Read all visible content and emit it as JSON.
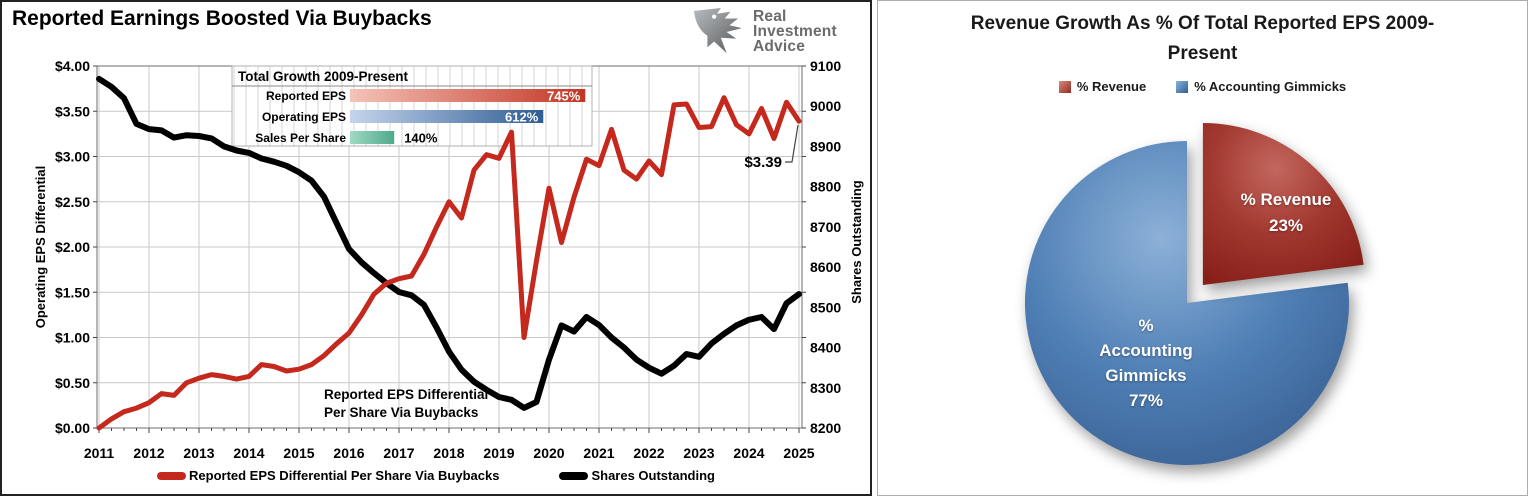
{
  "left_panel": {
    "title": "Reported Earnings Boosted Via Buybacks",
    "logo_lines": [
      "Real",
      "Investment",
      "Advice"
    ],
    "annotation": [
      "Reported EPS Differential",
      "Per Share Via Buybacks"
    ],
    "callout": "$3.39",
    "legend": [
      {
        "label": "Reported EPS Differential Per Share Via Buybacks",
        "color": "#c5281c"
      },
      {
        "label": "Shares Outstanding",
        "color": "#000000"
      }
    ]
  },
  "right_panel": {
    "title_line1": "Revenue Growth As % Of Total Reported EPS 2009-",
    "title_line2": "Present",
    "legend": [
      {
        "label": "% Revenue",
        "color": "#a23930"
      },
      {
        "label": "% Accounting Gimmicks",
        "color": "#4f81bd"
      }
    ],
    "pie_labels": {
      "revenue": [
        "% Revenue",
        "23%"
      ],
      "gimmicks": [
        "%",
        "Accounting",
        "Gimmicks",
        "77%"
      ]
    }
  },
  "chart_data": [
    {
      "type": "line",
      "title": "Reported Earnings Boosted Via Buybacks",
      "x_ticks": [
        2011,
        2012,
        2013,
        2014,
        2015,
        2016,
        2017,
        2018,
        2019,
        2020,
        2021,
        2022,
        2023,
        2024,
        2025
      ],
      "x": [
        2011,
        2011.25,
        2011.5,
        2011.75,
        2012,
        2012.25,
        2012.5,
        2012.75,
        2013,
        2013.25,
        2013.5,
        2013.75,
        2014,
        2014.25,
        2014.5,
        2014.75,
        2015,
        2015.25,
        2015.5,
        2015.75,
        2016,
        2016.25,
        2016.5,
        2016.75,
        2017,
        2017.25,
        2017.5,
        2017.75,
        2018,
        2018.25,
        2018.5,
        2018.75,
        2019,
        2019.25,
        2019.5,
        2019.75,
        2020,
        2020.25,
        2020.5,
        2020.75,
        2021,
        2021.25,
        2021.5,
        2021.75,
        2022,
        2022.25,
        2022.5,
        2022.75,
        2023,
        2023.25,
        2023.5,
        2023.75,
        2024,
        2024.25,
        2024.5,
        2024.75,
        2025
      ],
      "series": [
        {
          "name": "Reported EPS Differential Per Share Via Buybacks",
          "axis": "left",
          "color": "#c5281c",
          "values": [
            0.0,
            0.1,
            0.18,
            0.22,
            0.28,
            0.38,
            0.36,
            0.5,
            0.55,
            0.59,
            0.57,
            0.54,
            0.57,
            0.7,
            0.68,
            0.63,
            0.65,
            0.7,
            0.8,
            0.93,
            1.05,
            1.25,
            1.48,
            1.6,
            1.65,
            1.68,
            1.92,
            2.22,
            2.5,
            2.32,
            2.85,
            3.02,
            2.98,
            3.27,
            1.0,
            1.85,
            2.65,
            2.05,
            2.55,
            2.97,
            2.9,
            3.3,
            2.85,
            2.75,
            2.95,
            2.8,
            3.57,
            3.58,
            3.32,
            3.33,
            3.65,
            3.35,
            3.25,
            3.53,
            3.2,
            3.6,
            3.39
          ]
        },
        {
          "name": "Shares Outstanding",
          "axis": "right",
          "color": "#000000",
          "values": [
            9068,
            9048,
            9020,
            8956,
            8943,
            8940,
            8922,
            8928,
            8926,
            8920,
            8900,
            8890,
            8884,
            8870,
            8862,
            8852,
            8836,
            8815,
            8775,
            8710,
            8645,
            8612,
            8585,
            8560,
            8538,
            8530,
            8506,
            8450,
            8390,
            8345,
            8315,
            8295,
            8277,
            8270,
            8250,
            8265,
            8370,
            8455,
            8440,
            8476,
            8456,
            8425,
            8400,
            8370,
            8350,
            8335,
            8355,
            8384,
            8377,
            8410,
            8434,
            8455,
            8469,
            8476,
            8446,
            8510,
            8533
          ]
        }
      ],
      "left_axis": {
        "label": "Operating EPS Differential",
        "min": 0,
        "max": 4,
        "step": 0.5,
        "prefix": "$",
        "decimals": 2
      },
      "right_axis": {
        "label": "Shares Outstanding",
        "min": 8200,
        "max": 9100,
        "step": 100
      },
      "grid": true,
      "last_value_label": "$3.39"
    },
    {
      "type": "bar",
      "title": "Total Growth 2009-Present",
      "categories": [
        "Reported EPS",
        "Operating EPS",
        "Sales Per Share"
      ],
      "values": [
        745,
        612,
        140
      ],
      "labels": [
        "745%",
        "612%",
        "140%"
      ],
      "xlim": [
        0,
        760
      ],
      "colors": [
        "#c23523",
        "#2e5c95",
        "#4fa98c"
      ]
    },
    {
      "type": "pie",
      "title": "Revenue Growth As % Of Total Reported EPS 2009-Present",
      "slices": [
        {
          "label": "% Revenue",
          "value": 23,
          "color": "#a23930",
          "exploded": true
        },
        {
          "label": "% Accounting Gimmicks",
          "value": 77,
          "color": "#4f81bd",
          "exploded": false
        }
      ],
      "legend_position": "top"
    }
  ]
}
